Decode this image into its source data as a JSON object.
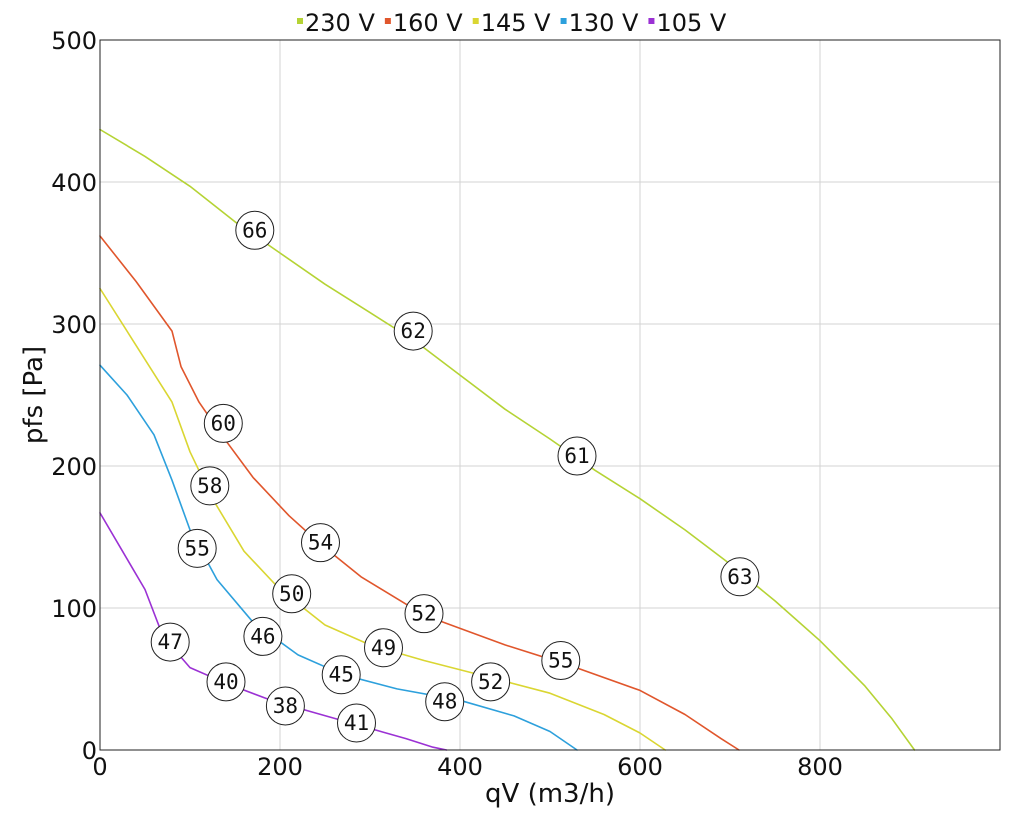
{
  "chart_data": {
    "type": "line",
    "xlabel": "qV (m3/h)",
    "ylabel": "pfs [Pa]",
    "xlim": [
      0,
      1000
    ],
    "ylim": [
      0,
      500
    ],
    "x_ticks": [
      0,
      200,
      400,
      600,
      800
    ],
    "y_ticks": [
      0,
      100,
      200,
      300,
      400,
      500
    ],
    "grid": true,
    "legend_position": "top",
    "series": [
      {
        "name": "230 V",
        "color": "#b5d334",
        "points": [
          [
            0,
            437
          ],
          [
            50,
            418
          ],
          [
            100,
            397
          ],
          [
            150,
            372
          ],
          [
            200,
            350
          ],
          [
            250,
            328
          ],
          [
            300,
            308
          ],
          [
            350,
            288
          ],
          [
            400,
            264
          ],
          [
            450,
            240
          ],
          [
            500,
            219
          ],
          [
            550,
            197
          ],
          [
            600,
            177
          ],
          [
            650,
            155
          ],
          [
            700,
            131
          ],
          [
            750,
            105
          ],
          [
            800,
            77
          ],
          [
            850,
            45
          ],
          [
            880,
            22
          ],
          [
            905,
            0
          ]
        ],
        "labels": [
          {
            "x": 172,
            "y": 366,
            "text": "66"
          },
          {
            "x": 348,
            "y": 295,
            "text": "62"
          },
          {
            "x": 530,
            "y": 207,
            "text": "61"
          },
          {
            "x": 711,
            "y": 122,
            "text": "63"
          }
        ]
      },
      {
        "name": "160 V",
        "color": "#e0562c",
        "points": [
          [
            0,
            362
          ],
          [
            40,
            330
          ],
          [
            80,
            295
          ],
          [
            90,
            270
          ],
          [
            110,
            245
          ],
          [
            135,
            222
          ],
          [
            170,
            192
          ],
          [
            210,
            165
          ],
          [
            245,
            145
          ],
          [
            290,
            122
          ],
          [
            360,
            95
          ],
          [
            450,
            74
          ],
          [
            520,
            60
          ],
          [
            600,
            42
          ],
          [
            650,
            25
          ],
          [
            690,
            8
          ],
          [
            710,
            0
          ]
        ],
        "labels": [
          {
            "x": 137,
            "y": 230,
            "text": "60"
          },
          {
            "x": 245,
            "y": 146,
            "text": "54"
          },
          {
            "x": 360,
            "y": 96,
            "text": "52"
          },
          {
            "x": 512,
            "y": 63,
            "text": "55"
          }
        ]
      },
      {
        "name": "145 V",
        "color": "#dad632",
        "points": [
          [
            0,
            325
          ],
          [
            40,
            285
          ],
          [
            80,
            245
          ],
          [
            100,
            210
          ],
          [
            125,
            177
          ],
          [
            160,
            140
          ],
          [
            200,
            113
          ],
          [
            250,
            88
          ],
          [
            300,
            74
          ],
          [
            360,
            63
          ],
          [
            440,
            50
          ],
          [
            500,
            40
          ],
          [
            560,
            25
          ],
          [
            600,
            12
          ],
          [
            628,
            0
          ]
        ],
        "labels": [
          {
            "x": 122,
            "y": 186,
            "text": "58"
          },
          {
            "x": 213,
            "y": 110,
            "text": "50"
          },
          {
            "x": 315,
            "y": 72,
            "text": "49"
          },
          {
            "x": 434,
            "y": 48,
            "text": "52"
          }
        ]
      },
      {
        "name": "130 V",
        "color": "#2da0dc",
        "points": [
          [
            0,
            271
          ],
          [
            30,
            250
          ],
          [
            60,
            222
          ],
          [
            80,
            190
          ],
          [
            100,
            155
          ],
          [
            130,
            120
          ],
          [
            170,
            90
          ],
          [
            220,
            67
          ],
          [
            270,
            53
          ],
          [
            330,
            43
          ],
          [
            400,
            35
          ],
          [
            460,
            24
          ],
          [
            500,
            13
          ],
          [
            530,
            0
          ]
        ],
        "labels": [
          {
            "x": 108,
            "y": 142,
            "text": "55"
          },
          {
            "x": 181,
            "y": 80,
            "text": "46"
          },
          {
            "x": 268,
            "y": 53,
            "text": "45"
          },
          {
            "x": 383,
            "y": 34,
            "text": "48"
          }
        ]
      },
      {
        "name": "105 V",
        "color": "#9b31d4",
        "points": [
          [
            0,
            167
          ],
          [
            25,
            140
          ],
          [
            50,
            113
          ],
          [
            70,
            80
          ],
          [
            100,
            58
          ],
          [
            140,
            47
          ],
          [
            190,
            35
          ],
          [
            240,
            26
          ],
          [
            290,
            17
          ],
          [
            340,
            8
          ],
          [
            370,
            2
          ],
          [
            385,
            0
          ]
        ],
        "labels": [
          {
            "x": 78,
            "y": 76,
            "text": "47"
          },
          {
            "x": 140,
            "y": 48,
            "text": "40"
          },
          {
            "x": 206,
            "y": 31,
            "text": "38"
          },
          {
            "x": 285,
            "y": 19,
            "text": "41"
          }
        ]
      }
    ]
  }
}
